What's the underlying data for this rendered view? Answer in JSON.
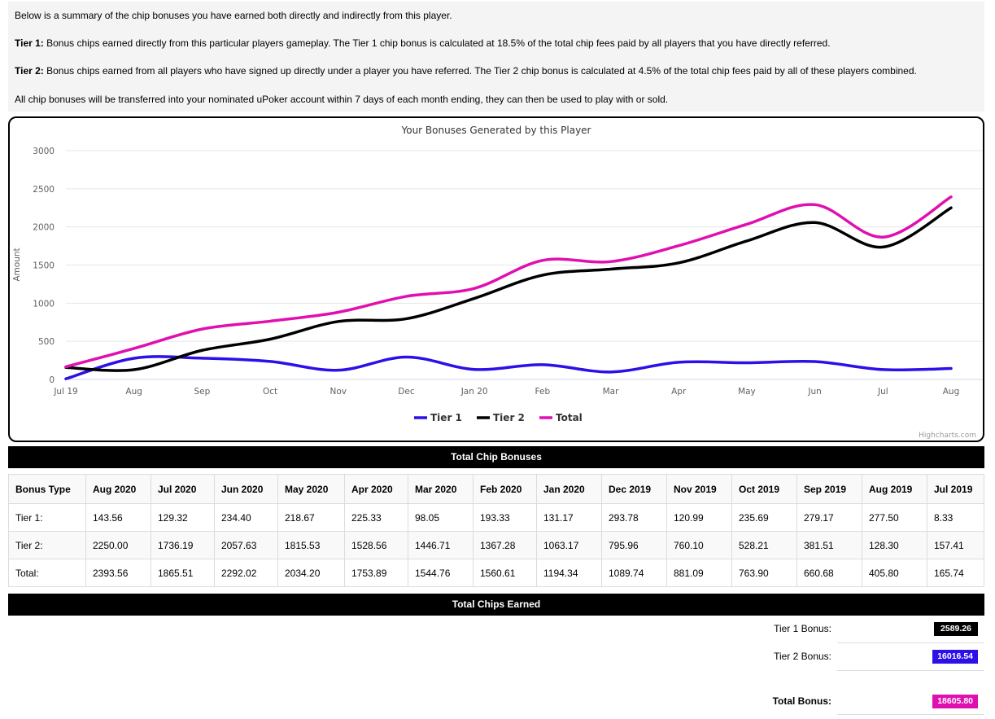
{
  "info": {
    "summary": "Below is a summary of the chip bonuses you have earned both directly and indirectly from this player.",
    "tier1_label": "Tier 1:",
    "tier1_text": " Bonus chips earned directly from this particular players gameplay. The Tier 1 chip bonus is calculated at 18.5% of the total chip fees paid by all players that you have directly referred.",
    "tier2_label": "Tier 2:",
    "tier2_text": " Bonus chips earned from all players who have signed up directly under a player you have referred. The Tier 2 chip bonus is calculated at 4.5% of the total chip fees paid by all of these players combined.",
    "transfer_text": "All chip bonuses will be transferred into your nominated uPoker account within 7 days of each month ending, they can then be used to play with or sold."
  },
  "chart_data": {
    "type": "line",
    "title": "Your Bonuses Generated by this Player",
    "ylabel": "Amount",
    "xlabel": "",
    "categories": [
      "Jul 19",
      "Aug",
      "Sep",
      "Oct",
      "Nov",
      "Dec",
      "Jan 20",
      "Feb",
      "Mar",
      "Apr",
      "May",
      "Jun",
      "Jul",
      "Aug"
    ],
    "ylim": [
      0,
      3000
    ],
    "yticks": [
      0,
      500,
      1000,
      1500,
      2000,
      2500,
      3000
    ],
    "grid": true,
    "legend_position": "bottom-center",
    "series": [
      {
        "name": "Tier 1",
        "color": "#2b10e8",
        "values": [
          8.33,
          277.5,
          279.17,
          235.69,
          120.99,
          293.78,
          131.17,
          193.33,
          98.05,
          225.33,
          218.67,
          234.4,
          129.32,
          143.56
        ]
      },
      {
        "name": "Tier 2",
        "color": "#000000",
        "values": [
          157.41,
          128.3,
          381.51,
          528.21,
          760.1,
          795.96,
          1063.17,
          1367.28,
          1446.71,
          1528.56,
          1815.53,
          2057.63,
          1736.19,
          2250.0
        ]
      },
      {
        "name": "Total",
        "color": "#e010b0",
        "values": [
          165.74,
          405.8,
          660.68,
          763.9,
          881.09,
          1089.74,
          1194.34,
          1560.61,
          1544.76,
          1753.89,
          2034.2,
          2292.02,
          1865.51,
          2393.56
        ]
      }
    ],
    "credit": "Highcharts.com"
  },
  "chip_bonuses": {
    "header": "Total Chip Bonuses",
    "columns": [
      "Bonus Type",
      "Aug 2020",
      "Jul 2020",
      "Jun 2020",
      "May 2020",
      "Apr 2020",
      "Mar 2020",
      "Feb 2020",
      "Jan 2020",
      "Dec 2019",
      "Nov 2019",
      "Oct 2019",
      "Sep 2019",
      "Aug 2019",
      "Jul 2019"
    ],
    "rows": [
      [
        "Tier 1:",
        "143.56",
        "129.32",
        "234.40",
        "218.67",
        "225.33",
        "98.05",
        "193.33",
        "131.17",
        "293.78",
        "120.99",
        "235.69",
        "279.17",
        "277.50",
        "8.33"
      ],
      [
        "Tier 2:",
        "2250.00",
        "1736.19",
        "2057.63",
        "1815.53",
        "1528.56",
        "1446.71",
        "1367.28",
        "1063.17",
        "795.96",
        "760.10",
        "528.21",
        "381.51",
        "128.30",
        "157.41"
      ],
      [
        "Total:",
        "2393.56",
        "1865.51",
        "2292.02",
        "2034.20",
        "1753.89",
        "1544.76",
        "1560.61",
        "1194.34",
        "1089.74",
        "881.09",
        "763.90",
        "660.68",
        "405.80",
        "165.74"
      ]
    ]
  },
  "chips_earned": {
    "header": "Total Chips Earned",
    "tier1_label": "Tier 1 Bonus:",
    "tier1_value": "2589.26",
    "tier1_color": "#000000",
    "tier2_label": "Tier 2 Bonus:",
    "tier2_value": "16016.54",
    "tier2_color": "#2b10e8",
    "total_label": "Total Bonus:",
    "total_value": "18605.80",
    "total_color": "#e010b0"
  }
}
